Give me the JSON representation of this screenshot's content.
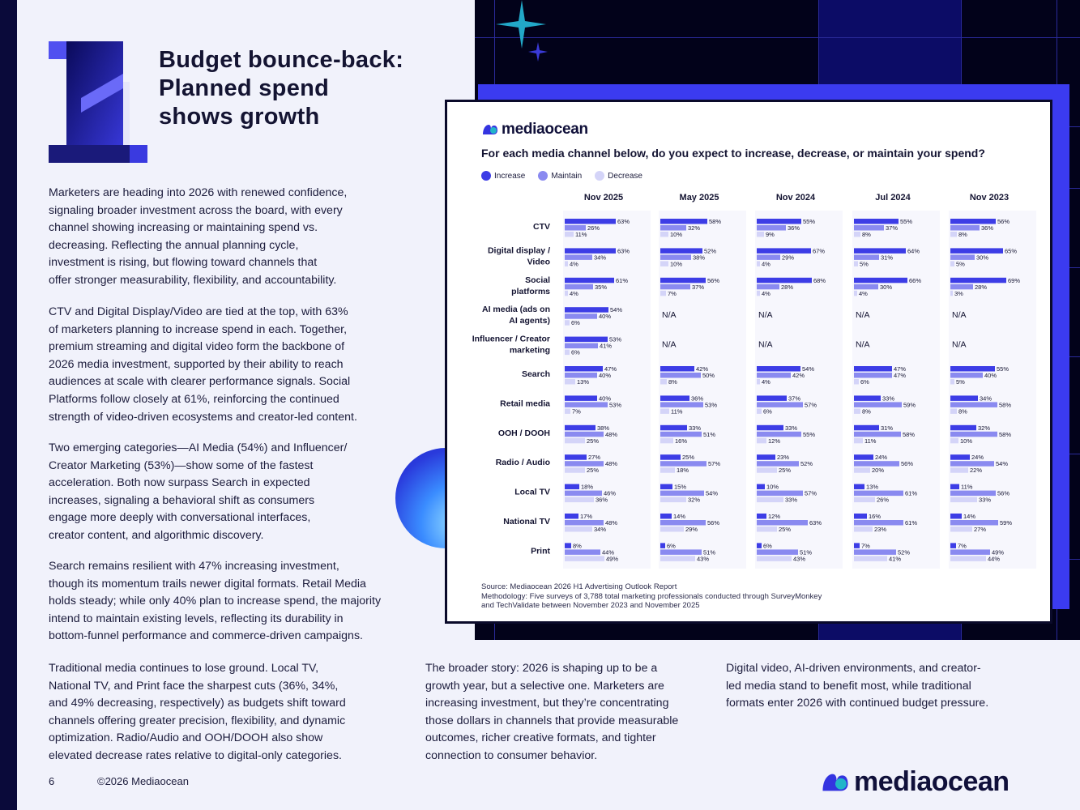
{
  "page": {
    "title_lines": [
      "Budget bounce-back:",
      "Planned spend",
      "shows growth"
    ],
    "big_number": "1",
    "paragraphs_col1": [
      [
        "Marketers are heading into 2026 with renewed confidence,",
        "signaling broader investment across the board, with every",
        "channel showing increasing or maintaining spend vs.",
        "decreasing. Reflecting the annual planning cycle,",
        "investment is rising, but flowing toward channels that",
        "offer stronger measurability, flexibility, and accountability."
      ],
      [
        "CTV and Digital Display/Video are tied at the top, with 63%",
        "of marketers planning to increase spend in each. Together,",
        "premium streaming and digital video form the backbone of",
        "2026 media investment, supported by their ability to reach",
        "audiences at scale with clearer performance signals. Social",
        "Platforms follow closely at 61%, reinforcing the continued",
        "strength of video-driven ecosystems and creator-led content."
      ],
      [
        "Two emerging categories—AI Media (54%) and Influencer/",
        "Creator Marketing (53%)—show some of the fastest",
        "acceleration. Both now surpass Search in expected",
        "increases, signaling a behavioral shift as consumers",
        "engage more deeply with conversational interfaces,",
        "creator content, and algorithmic discovery."
      ],
      [
        "Search remains resilient with 47% increasing investment,",
        "though its momentum trails newer digital formats. Retail Media",
        "holds steady; while only 40% plan to increase spend, the majority",
        "intend to maintain existing levels, reflecting its durability in",
        "bottom-funnel performance and commerce-driven campaigns."
      ],
      [
        "Traditional media continues to lose ground. Local TV,",
        "National TV, and Print face the sharpest cuts (36%, 34%,",
        "and 49% decreasing, respectively) as budgets shift toward",
        "channels offering greater precision, flexibility, and dynamic",
        "optimization. Radio/Audio and OOH/DOOH also show",
        "elevated decrease rates relative to digital-only categories."
      ]
    ],
    "paragraph_col2": [
      "The broader story: 2026 is shaping up to be a",
      "growth year, but a selective one. Marketers are",
      "increasing investment, but they’re concentrating",
      "those dollars in channels that provide measurable",
      "outcomes, richer creative formats, and tighter",
      "connection to consumer behavior."
    ],
    "paragraph_col3": [
      "Digital video, AI-driven environments, and creator-",
      "led media stand to benefit most, while traditional",
      "formats enter 2026 with continued budget pressure."
    ],
    "footer": {
      "page_number": "6",
      "copyright": "©2026 Mediaocean",
      "brand": "mediaocean"
    }
  },
  "card": {
    "brand": "mediaocean",
    "question": "For each media channel below, do you expect to increase, decrease, or maintain your spend?",
    "source_lines": [
      "Source: Mediaocean 2026 H1 Advertising Outlook Report",
      "Methodology: Five surveys of 3,788 total marketing professionals conducted through SurveyMonkey",
      "and TechValidate between November 2023 and November 2025"
    ]
  },
  "colors": {
    "increase": "#3d3de6",
    "maintain": "#8a8af0",
    "decrease": "#d4d4f8",
    "dark_navy": "#02021a",
    "accent_blue": "#3b3bf0"
  },
  "chart_data": {
    "type": "bar",
    "orientation": "horizontal",
    "grouped_panels": true,
    "legend": [
      "Increase",
      "Maintain",
      "Decrease"
    ],
    "legend_position": "top-left",
    "panels": [
      "Nov 2025",
      "May 2025",
      "Nov 2024",
      "Jul 2024",
      "Nov 2023"
    ],
    "categories": [
      [
        "CTV"
      ],
      [
        "Digital display /",
        "Video"
      ],
      [
        "Social",
        "platforms"
      ],
      [
        "AI media (ads on",
        "AI agents)"
      ],
      [
        "Influencer / Creator",
        "marketing"
      ],
      [
        "Search"
      ],
      [
        "Retail media"
      ],
      [
        "OOH / DOOH"
      ],
      [
        "Radio / Audio"
      ],
      [
        "Local TV"
      ],
      [
        "National TV"
      ],
      [
        "Print"
      ]
    ],
    "na_label": "N/A",
    "values": [
      [
        [
          63,
          26,
          11
        ],
        [
          63,
          34,
          4
        ],
        [
          61,
          35,
          4
        ],
        [
          54,
          40,
          6
        ],
        [
          53,
          41,
          6
        ],
        [
          47,
          40,
          13
        ],
        [
          40,
          53,
          7
        ],
        [
          38,
          48,
          25
        ],
        [
          27,
          48,
          25
        ],
        [
          18,
          46,
          36
        ],
        [
          17,
          48,
          34
        ],
        [
          8,
          44,
          49
        ]
      ],
      [
        [
          58,
          32,
          10
        ],
        [
          52,
          38,
          10
        ],
        [
          56,
          37,
          7
        ],
        null,
        null,
        [
          42,
          50,
          8
        ],
        [
          36,
          53,
          11
        ],
        [
          33,
          51,
          16
        ],
        [
          25,
          57,
          18
        ],
        [
          15,
          54,
          32
        ],
        [
          14,
          56,
          29
        ],
        [
          6,
          51,
          43
        ]
      ],
      [
        [
          55,
          36,
          9
        ],
        [
          67,
          29,
          4
        ],
        [
          68,
          28,
          4
        ],
        null,
        null,
        [
          54,
          42,
          4
        ],
        [
          37,
          57,
          6
        ],
        [
          33,
          55,
          12
        ],
        [
          23,
          52,
          25
        ],
        [
          10,
          57,
          33
        ],
        [
          12,
          63,
          25
        ],
        [
          6,
          51,
          43
        ]
      ],
      [
        [
          55,
          37,
          8
        ],
        [
          64,
          31,
          5
        ],
        [
          66,
          30,
          4
        ],
        null,
        null,
        [
          47,
          47,
          6
        ],
        [
          33,
          59,
          8
        ],
        [
          31,
          58,
          11
        ],
        [
          24,
          56,
          20
        ],
        [
          13,
          61,
          26
        ],
        [
          16,
          61,
          23
        ],
        [
          7,
          52,
          41
        ]
      ],
      [
        [
          56,
          36,
          8
        ],
        [
          65,
          30,
          5
        ],
        [
          69,
          28,
          3
        ],
        null,
        null,
        [
          55,
          40,
          5
        ],
        [
          34,
          58,
          8
        ],
        [
          32,
          58,
          10
        ],
        [
          24,
          54,
          22
        ],
        [
          11,
          56,
          33
        ],
        [
          14,
          59,
          27
        ],
        [
          7,
          49,
          44
        ]
      ]
    ],
    "series_order": [
      "Increase",
      "Maintain",
      "Decrease"
    ],
    "xlim": [
      0,
      100
    ],
    "grid": false
  }
}
